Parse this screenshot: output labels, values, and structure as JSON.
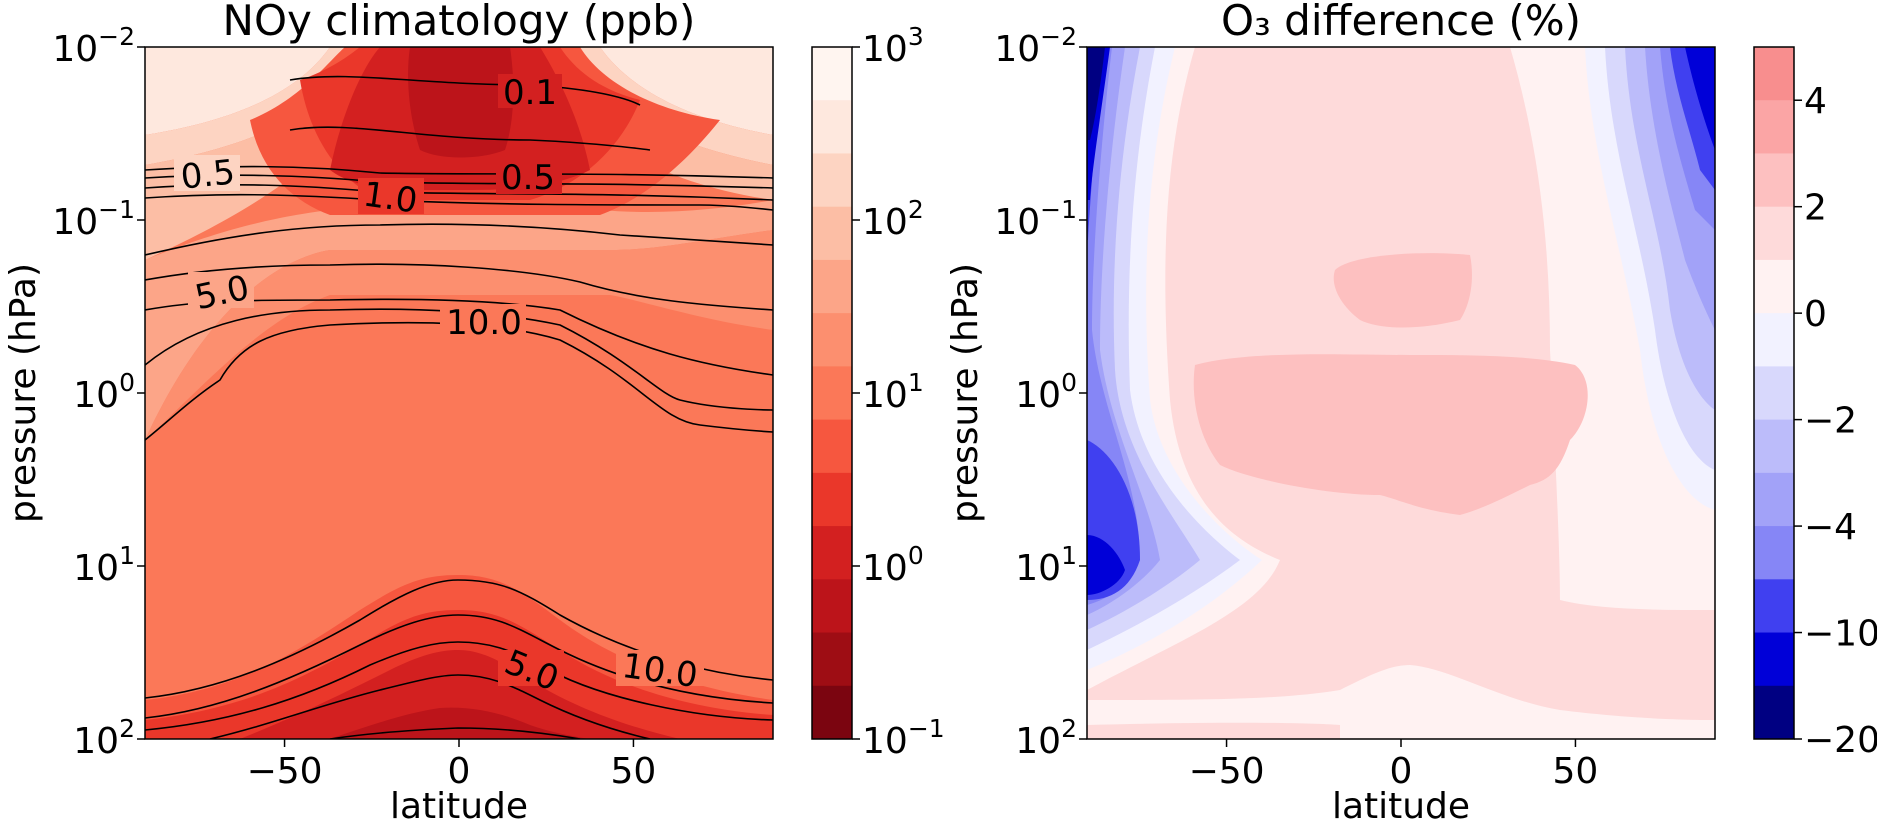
{
  "chart_data": [
    {
      "type": "heatmap",
      "title": "NOy climatology (ppb)",
      "xlabel": "latitude",
      "ylabel": "pressure (hPa)",
      "xlim": [
        -90,
        90
      ],
      "ylim": [
        100,
        0.01
      ],
      "yscale": "log",
      "x_ticks": [
        -50,
        0,
        50
      ],
      "x_tick_labels": [
        "−50",
        "0",
        "50"
      ],
      "y_tick_labels": [
        {
          "base": "10",
          "exp": "−2",
          "value": 0.01
        },
        {
          "base": "10",
          "exp": "−1",
          "value": 0.1
        },
        {
          "base": "10",
          "exp": "0",
          "value": 1
        },
        {
          "base": "10",
          "exp": "1",
          "value": 10
        },
        {
          "base": "10",
          "exp": "2",
          "value": 100
        }
      ],
      "colorbar": {
        "scale": "log",
        "range": [
          0.1,
          1000
        ],
        "tick_labels": [
          {
            "base": "10",
            "exp": "3",
            "value": 1000
          },
          {
            "base": "10",
            "exp": "2",
            "value": 100
          },
          {
            "base": "10",
            "exp": "1",
            "value": 10
          },
          {
            "base": "10",
            "exp": "0",
            "value": 1
          },
          {
            "base": "10",
            "exp": "−1",
            "value": 0.1
          }
        ],
        "colors_top_to_bottom": [
          "#fff5f0",
          "#fee8de",
          "#fdd4c2",
          "#fcbea5",
          "#fca588",
          "#fc8f6f",
          "#fb7858",
          "#f6573f",
          "#ea372a",
          "#d32020",
          "#bc141a",
          "#9e0d14",
          "#7b0510"
        ]
      },
      "contour_labels": [
        "0.1",
        "0.5",
        "0.5",
        "1.0",
        "5.0",
        "10.0",
        "5.0",
        "10.0"
      ]
    },
    {
      "type": "heatmap",
      "title": "O₃ difference (%)",
      "xlabel": "latitude",
      "ylabel": "pressure (hPa)",
      "xlim": [
        -90,
        90
      ],
      "ylim": [
        100,
        0.01
      ],
      "yscale": "log",
      "x_ticks": [
        -50,
        0,
        50
      ],
      "x_tick_labels": [
        "−50",
        "0",
        "50"
      ],
      "y_tick_labels": [
        {
          "base": "10",
          "exp": "−2",
          "value": 0.01
        },
        {
          "base": "10",
          "exp": "−1",
          "value": 0.1
        },
        {
          "base": "10",
          "exp": "0",
          "value": 1
        },
        {
          "base": "10",
          "exp": "1",
          "value": 10
        },
        {
          "base": "10",
          "exp": "2",
          "value": 100
        }
      ],
      "colorbar": {
        "levels_top_to_bottom": [
          5,
          4,
          3,
          2,
          1,
          0,
          -1,
          -2,
          -3,
          -4,
          -5,
          -10,
          -15,
          -20
        ],
        "tick_labels": [
          "4",
          "2",
          "0",
          "−2",
          "−4",
          "−10",
          "−20"
        ],
        "colors_top_to_bottom": [
          "#f88e8e",
          "#fba5a5",
          "#fdc0c0",
          "#fedada",
          "#fff2f2",
          "#f2f2ff",
          "#d8d8fc",
          "#bcbcfa",
          "#a2a2f8",
          "#8686f6",
          "#4040f0",
          "#0000d8",
          "#000082"
        ]
      }
    }
  ]
}
